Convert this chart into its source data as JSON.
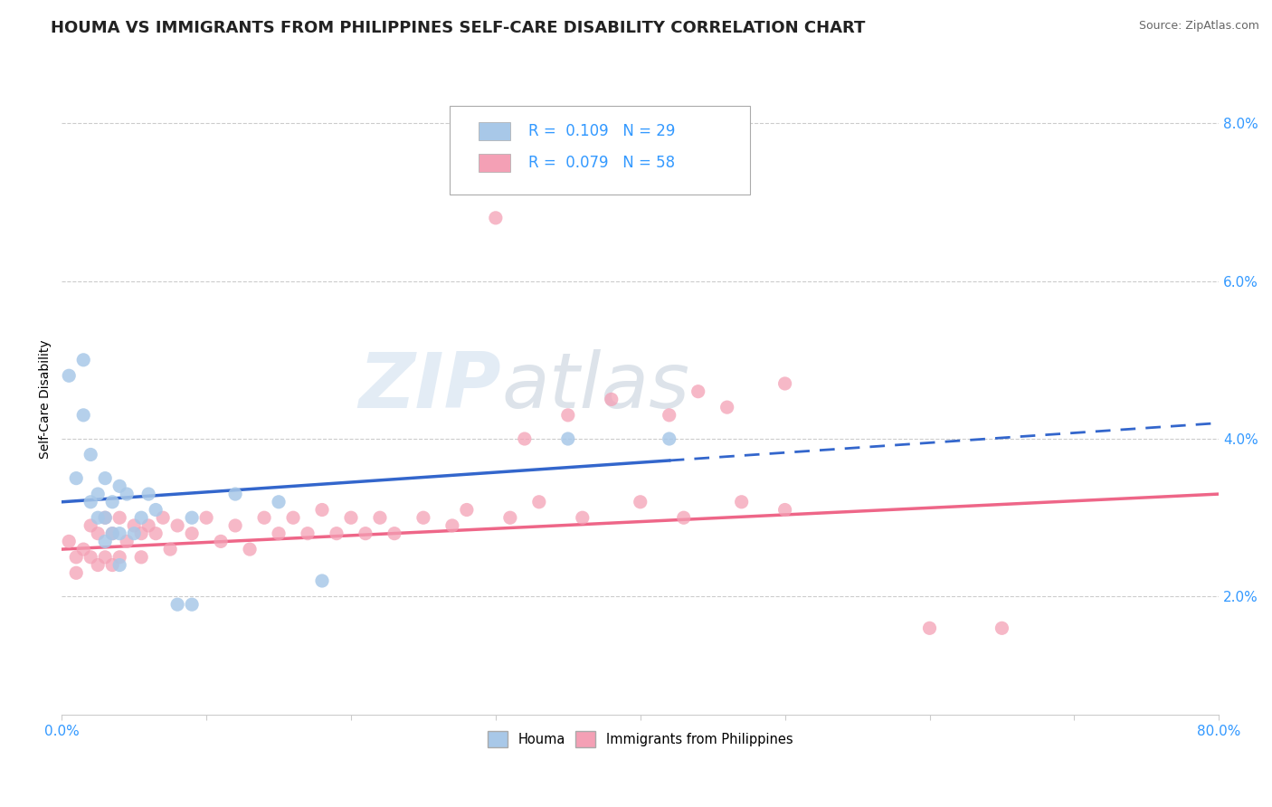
{
  "title": "HOUMA VS IMMIGRANTS FROM PHILIPPINES SELF-CARE DISABILITY CORRELATION CHART",
  "source": "Source: ZipAtlas.com",
  "ylabel": "Self-Care Disability",
  "xlim": [
    0.0,
    0.8
  ],
  "ylim": [
    0.005,
    0.085
  ],
  "yticks": [
    0.02,
    0.04,
    0.06,
    0.08
  ],
  "ytick_labels": [
    "2.0%",
    "4.0%",
    "6.0%",
    "8.0%"
  ],
  "xticks": [
    0.0,
    0.1,
    0.2,
    0.3,
    0.4,
    0.5,
    0.6,
    0.7,
    0.8
  ],
  "legend_r1": "R =  0.109",
  "legend_n1": "N = 29",
  "legend_r2": "R =  0.079",
  "legend_n2": "N = 58",
  "color_houma": "#A8C8E8",
  "color_philippines": "#F4A0B5",
  "color_blue": "#3366CC",
  "color_pink": "#EE6688",
  "watermark_zip": "ZIP",
  "watermark_atlas": "atlas",
  "houma_x": [
    0.005,
    0.01,
    0.015,
    0.015,
    0.02,
    0.02,
    0.025,
    0.025,
    0.03,
    0.03,
    0.03,
    0.035,
    0.035,
    0.04,
    0.04,
    0.04,
    0.045,
    0.05,
    0.055,
    0.06,
    0.065,
    0.08,
    0.09,
    0.09,
    0.12,
    0.15,
    0.18,
    0.35,
    0.42
  ],
  "houma_y": [
    0.048,
    0.035,
    0.05,
    0.043,
    0.038,
    0.032,
    0.033,
    0.03,
    0.035,
    0.03,
    0.027,
    0.032,
    0.028,
    0.034,
    0.028,
    0.024,
    0.033,
    0.028,
    0.03,
    0.033,
    0.031,
    0.019,
    0.03,
    0.019,
    0.033,
    0.032,
    0.022,
    0.04,
    0.04
  ],
  "phil_x": [
    0.005,
    0.01,
    0.01,
    0.015,
    0.02,
    0.02,
    0.025,
    0.025,
    0.03,
    0.03,
    0.035,
    0.035,
    0.04,
    0.04,
    0.045,
    0.05,
    0.055,
    0.055,
    0.06,
    0.065,
    0.07,
    0.075,
    0.08,
    0.09,
    0.1,
    0.11,
    0.12,
    0.13,
    0.14,
    0.15,
    0.16,
    0.17,
    0.18,
    0.19,
    0.2,
    0.21,
    0.22,
    0.23,
    0.25,
    0.27,
    0.28,
    0.31,
    0.33,
    0.36,
    0.4,
    0.43,
    0.47,
    0.5,
    0.3,
    0.32,
    0.35,
    0.38,
    0.42,
    0.44,
    0.46,
    0.5,
    0.6,
    0.65
  ],
  "phil_y": [
    0.027,
    0.025,
    0.023,
    0.026,
    0.029,
    0.025,
    0.028,
    0.024,
    0.03,
    0.025,
    0.028,
    0.024,
    0.03,
    0.025,
    0.027,
    0.029,
    0.028,
    0.025,
    0.029,
    0.028,
    0.03,
    0.026,
    0.029,
    0.028,
    0.03,
    0.027,
    0.029,
    0.026,
    0.03,
    0.028,
    0.03,
    0.028,
    0.031,
    0.028,
    0.03,
    0.028,
    0.03,
    0.028,
    0.03,
    0.029,
    0.031,
    0.03,
    0.032,
    0.03,
    0.032,
    0.03,
    0.032,
    0.031,
    0.068,
    0.04,
    0.043,
    0.045,
    0.043,
    0.046,
    0.044,
    0.047,
    0.016,
    0.016
  ],
  "title_fontsize": 13,
  "axis_label_fontsize": 10,
  "tick_fontsize": 11,
  "legend_fontsize": 12
}
